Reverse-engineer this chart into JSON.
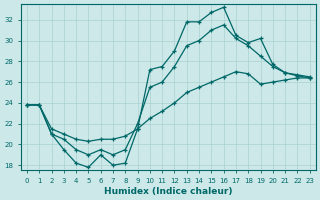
{
  "xlabel": "Humidex (Indice chaleur)",
  "ylabel": "",
  "bg_color": "#cce8e8",
  "grid_color": "#aad0d0",
  "line_color": "#006868",
  "xlim": [
    -0.5,
    23.5
  ],
  "ylim": [
    17.5,
    33.5
  ],
  "xticks": [
    0,
    1,
    2,
    3,
    4,
    5,
    6,
    7,
    8,
    9,
    10,
    11,
    12,
    13,
    14,
    15,
    16,
    17,
    18,
    19,
    20,
    21,
    22,
    23
  ],
  "yticks": [
    18,
    20,
    22,
    24,
    26,
    28,
    30,
    32
  ],
  "line_upper_x": [
    0,
    1,
    2,
    3,
    4,
    5,
    6,
    7,
    8,
    9,
    10,
    11,
    12,
    13,
    14,
    15,
    16,
    17,
    18,
    19,
    20,
    21,
    22,
    23
  ],
  "line_upper_y": [
    23.8,
    23.8,
    21.0,
    19.5,
    18.2,
    17.8,
    19.0,
    18.0,
    18.2,
    21.5,
    27.2,
    27.5,
    29.0,
    31.8,
    31.8,
    32.7,
    33.2,
    30.5,
    29.8,
    30.2,
    27.7,
    26.9,
    26.7,
    26.5
  ],
  "line_mid_x": [
    0,
    1,
    2,
    3,
    4,
    5,
    6,
    7,
    8,
    9,
    10,
    11,
    12,
    13,
    14,
    15,
    16,
    17,
    18,
    19,
    20,
    21,
    22,
    23
  ],
  "line_mid_y": [
    23.8,
    23.8,
    21.0,
    20.5,
    19.5,
    19.0,
    19.5,
    19.0,
    19.5,
    22.0,
    25.5,
    26.0,
    27.5,
    29.5,
    30.0,
    31.0,
    31.5,
    30.2,
    29.5,
    28.5,
    27.5,
    26.9,
    26.6,
    26.4
  ],
  "line_lower_x": [
    0,
    1,
    2,
    3,
    4,
    5,
    6,
    7,
    8,
    9,
    10,
    11,
    12,
    13,
    14,
    15,
    16,
    17,
    18,
    19,
    20,
    21,
    22,
    23
  ],
  "line_lower_y": [
    23.8,
    23.8,
    21.5,
    21.0,
    20.5,
    20.3,
    20.5,
    20.5,
    20.8,
    21.5,
    22.5,
    23.2,
    24.0,
    25.0,
    25.5,
    26.0,
    26.5,
    27.0,
    26.8,
    25.8,
    26.0,
    26.2,
    26.4,
    26.4
  ]
}
